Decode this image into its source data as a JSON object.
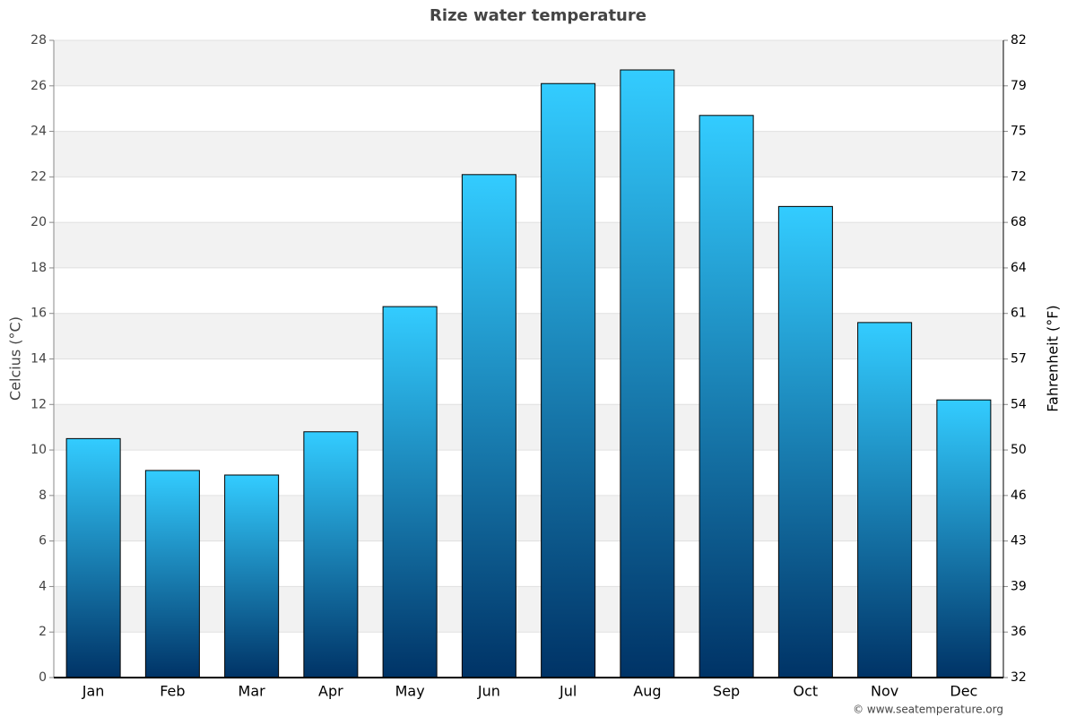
{
  "chart_data": {
    "type": "bar",
    "title": "Rize water temperature",
    "categories": [
      "Jan",
      "Feb",
      "Mar",
      "Apr",
      "May",
      "Jun",
      "Jul",
      "Aug",
      "Sep",
      "Oct",
      "Nov",
      "Dec"
    ],
    "values": [
      10.5,
      9.1,
      8.9,
      10.8,
      16.3,
      22.1,
      26.1,
      26.7,
      24.7,
      20.7,
      15.6,
      12.2
    ],
    "color": [
      "#33ccff",
      "#003366"
    ],
    "ylabel": "Celcius (°C)",
    "y2label": "Fahrenheit (°F)",
    "ylim": [
      0,
      28
    ],
    "yticks": [
      0,
      2,
      4,
      6,
      8,
      10,
      12,
      14,
      16,
      18,
      20,
      22,
      24,
      26,
      28
    ],
    "y2lim": [
      32,
      82.4
    ],
    "y2ticks": [
      32,
      {
        "value": 35.6,
        "label": "36"
      },
      {
        "value": 39.2,
        "label": "39"
      },
      {
        "value": 42.8,
        "label": "43"
      },
      {
        "value": 46.4,
        "label": "46"
      },
      50,
      {
        "value": 53.6,
        "label": "54"
      },
      {
        "value": 57.2,
        "label": "57"
      },
      {
        "value": 60.8,
        "label": "61"
      },
      {
        "value": 64.4,
        "label": "64"
      },
      68,
      {
        "value": 71.6,
        "label": "72"
      },
      {
        "value": 75.2,
        "label": "75"
      },
      {
        "value": 78.8,
        "label": "79"
      },
      {
        "value": 82.4,
        "label": "82"
      }
    ],
    "grid": true,
    "band_color": "#f2f2f2",
    "source": "© www.seatemperature.org"
  }
}
